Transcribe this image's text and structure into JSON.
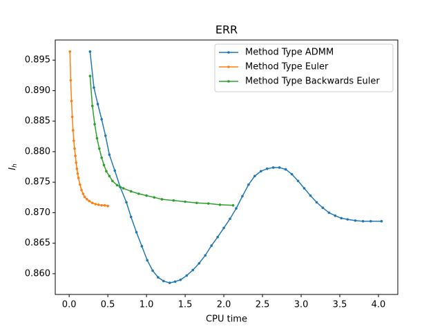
{
  "chart_data": {
    "type": "line",
    "title": "ERR",
    "x_label": "CPU time",
    "y_label": "I",
    "y_label_sub": "h",
    "xlim": [
      -0.18,
      4.25
    ],
    "ylim": [
      0.8566,
      0.8983
    ],
    "xticks": [
      {
        "value": 0,
        "label": "0.0"
      },
      0.5,
      {
        "value": 1,
        "label": "1.0"
      },
      1.5,
      {
        "value": 2,
        "label": "2.0"
      },
      2.5,
      {
        "value": 3,
        "label": "3.0"
      },
      3.5,
      {
        "value": 4,
        "label": "4.0"
      }
    ],
    "yticks": [
      {
        "value": 0.86,
        "label": "0.860"
      },
      0.865,
      {
        "value": 0.87,
        "label": "0.870"
      },
      0.875,
      {
        "value": 0.88,
        "label": "0.880"
      },
      0.885,
      {
        "value": 0.89,
        "label": "0.890"
      },
      0.895
    ],
    "grid": false,
    "legend": "upper right",
    "series": [
      {
        "name": "Method Type ADMM",
        "color": "#1f77b4",
        "x": [
          0.27,
          0.32,
          0.37,
          0.42,
          0.47,
          0.52,
          0.59,
          0.66,
          0.74,
          0.8,
          0.87,
          0.94,
          1.01,
          1.08,
          1.15,
          1.22,
          1.3,
          1.37,
          1.44,
          1.52,
          1.6,
          1.68,
          1.76,
          1.84,
          1.92,
          2.0,
          2.08,
          2.16,
          2.24,
          2.32,
          2.4,
          2.48,
          2.56,
          2.64,
          2.72,
          2.8,
          2.88,
          2.96,
          3.04,
          3.12,
          3.2,
          3.28,
          3.36,
          3.44,
          3.52,
          3.6,
          3.7,
          3.8,
          3.9,
          4.04
        ],
        "values": [
          0.8964,
          0.8905,
          0.8878,
          0.8853,
          0.8826,
          0.8795,
          0.8769,
          0.8742,
          0.8717,
          0.8693,
          0.8668,
          0.8645,
          0.8622,
          0.8605,
          0.8594,
          0.8588,
          0.8585,
          0.8587,
          0.859,
          0.8597,
          0.8606,
          0.8617,
          0.863,
          0.8646,
          0.866,
          0.8675,
          0.869,
          0.8707,
          0.8727,
          0.8746,
          0.876,
          0.8768,
          0.8772,
          0.8774,
          0.8774,
          0.8771,
          0.8763,
          0.8752,
          0.874,
          0.8728,
          0.8717,
          0.8708,
          0.87,
          0.8695,
          0.8691,
          0.8689,
          0.8687,
          0.8686,
          0.8686,
          0.8686
        ]
      },
      {
        "name": "Method Type Euler",
        "color": "#ff7f0e",
        "x": [
          0.01,
          0.02,
          0.03,
          0.04,
          0.05,
          0.06,
          0.07,
          0.08,
          0.09,
          0.1,
          0.11,
          0.12,
          0.14,
          0.16,
          0.18,
          0.2,
          0.23,
          0.26,
          0.3,
          0.34,
          0.38,
          0.42,
          0.46,
          0.5
        ],
        "values": [
          0.8964,
          0.8917,
          0.8883,
          0.8857,
          0.8835,
          0.8818,
          0.8805,
          0.8793,
          0.8782,
          0.8772,
          0.8764,
          0.8757,
          0.8746,
          0.8737,
          0.8731,
          0.8726,
          0.8722,
          0.8719,
          0.8716,
          0.8714,
          0.8713,
          0.8712,
          0.8712,
          0.8711
        ]
      },
      {
        "name": "Method Type Backwards Euler",
        "color": "#2ca02c",
        "x": [
          0.27,
          0.3,
          0.33,
          0.36,
          0.39,
          0.42,
          0.45,
          0.48,
          0.52,
          0.56,
          0.62,
          0.7,
          0.8,
          0.9,
          1.0,
          1.1,
          1.2,
          1.35,
          1.5,
          1.65,
          1.8,
          1.95,
          2.12
        ],
        "values": [
          0.8924,
          0.8875,
          0.8845,
          0.8822,
          0.8805,
          0.879,
          0.8778,
          0.8768,
          0.876,
          0.8752,
          0.8745,
          0.874,
          0.8735,
          0.8731,
          0.8728,
          0.8725,
          0.8722,
          0.872,
          0.8718,
          0.8716,
          0.8715,
          0.8713,
          0.8712
        ]
      }
    ]
  }
}
